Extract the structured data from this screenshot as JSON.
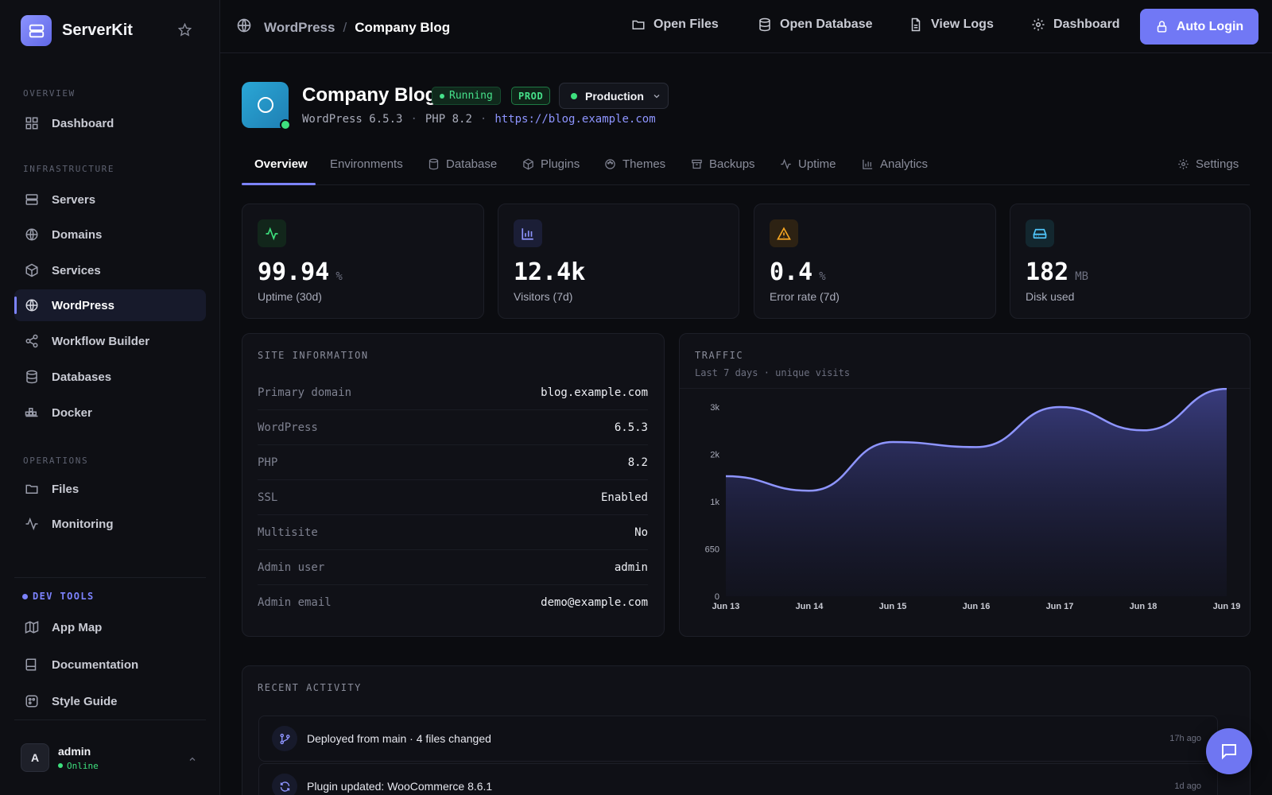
{
  "brand": {
    "name": "ServerKit"
  },
  "sidebar": {
    "sections": {
      "overview": "OVERVIEW",
      "infrastructure": "INFRASTRUCTURE",
      "operations": "OPERATIONS",
      "devtools": "DEV TOOLS"
    },
    "items": [
      {
        "label": "Dashboard",
        "icon": "grid-icon"
      },
      {
        "label": "Servers",
        "icon": "server-icon"
      },
      {
        "label": "Domains",
        "icon": "globe-icon"
      },
      {
        "label": "Services",
        "icon": "box-icon"
      },
      {
        "label": "WordPress",
        "icon": "wordpress-icon",
        "active": true
      },
      {
        "label": "Workflow Builder",
        "icon": "share-icon"
      },
      {
        "label": "Databases",
        "icon": "database-icon"
      },
      {
        "label": "Docker",
        "icon": "docker-icon"
      },
      {
        "label": "Files",
        "icon": "folder-icon"
      },
      {
        "label": "Monitoring",
        "icon": "activity-icon"
      },
      {
        "label": "App Map",
        "icon": "map-icon"
      },
      {
        "label": "Documentation",
        "icon": "book-icon"
      },
      {
        "label": "Style Guide",
        "icon": "palette-icon"
      }
    ],
    "user": {
      "initial": "A",
      "name": "admin",
      "status": "Online"
    }
  },
  "topbar": {
    "breadcrumb": [
      "WordPress",
      "Company Blog"
    ],
    "separator": "/",
    "actions": [
      "Open Files",
      "Open Database",
      "View Logs",
      "Dashboard"
    ],
    "primary": "Auto Login"
  },
  "site": {
    "title": "Company Blog",
    "status": "Running",
    "tag": "PROD",
    "environment": "Production",
    "wp_version": "WordPress 6.5.3",
    "php_version": "PHP 8.2",
    "url": "https://blog.example.com",
    "meta_sep": "·"
  },
  "tabs": [
    "Overview",
    "Environments",
    "Database",
    "Plugins",
    "Themes",
    "Backups",
    "Uptime",
    "Analytics",
    "Settings"
  ],
  "stats": [
    {
      "value": "99.94",
      "unit": "%",
      "label": "Uptime (30d)",
      "color": "#3ee07e"
    },
    {
      "value": "12.4k",
      "unit": "",
      "label": "Visitors (7d)",
      "color": "#8e95ff"
    },
    {
      "value": "0.4",
      "unit": "%",
      "label": "Error rate (7d)",
      "color": "#f5a623"
    },
    {
      "value": "182",
      "unit": "MB",
      "label": "Disk used",
      "color": "#4fc3f7"
    }
  ],
  "site_info": {
    "title": "SITE INFORMATION",
    "rows": [
      {
        "key": "Primary domain",
        "value": "blog.example.com"
      },
      {
        "key": "WordPress",
        "value": "6.5.3"
      },
      {
        "key": "PHP",
        "value": "8.2"
      },
      {
        "key": "SSL",
        "value": "Enabled"
      },
      {
        "key": "Multisite",
        "value": "No"
      },
      {
        "key": "Admin user",
        "value": "admin"
      },
      {
        "key": "Admin email",
        "value": "demo@example.com"
      }
    ]
  },
  "traffic": {
    "title": "TRAFFIC",
    "subtitle": "Last 7 days · unique visits"
  },
  "chart_data": {
    "type": "area",
    "title": "TRAFFIC",
    "subtitle": "Last 7 days · unique visits",
    "x": [
      "Jun 13",
      "Jun 14",
      "Jun 15",
      "Jun 16",
      "Jun 17",
      "Jun 18",
      "Jun 19"
    ],
    "series": [
      {
        "values": [
          1650,
          1450,
          2120,
          2050,
          2600,
          2280,
          2850
        ]
      }
    ],
    "ytick_labels": [
      "0",
      "650",
      "1k",
      "2k",
      "3k"
    ],
    "ytick_values": [
      0,
      650,
      1300,
      1950,
      2600
    ],
    "ylim": [
      0,
      2600
    ],
    "grid": false,
    "color": "#8e95ff"
  },
  "activity": {
    "title": "RECENT ACTIVITY",
    "items": [
      {
        "text": "Deployed from main · 4 files changed",
        "time": "17h ago",
        "icon": "git-branch-icon"
      },
      {
        "text": "Plugin updated: WooCommerce 8.6.1",
        "time": "1d ago",
        "icon": "refresh-icon"
      }
    ]
  }
}
